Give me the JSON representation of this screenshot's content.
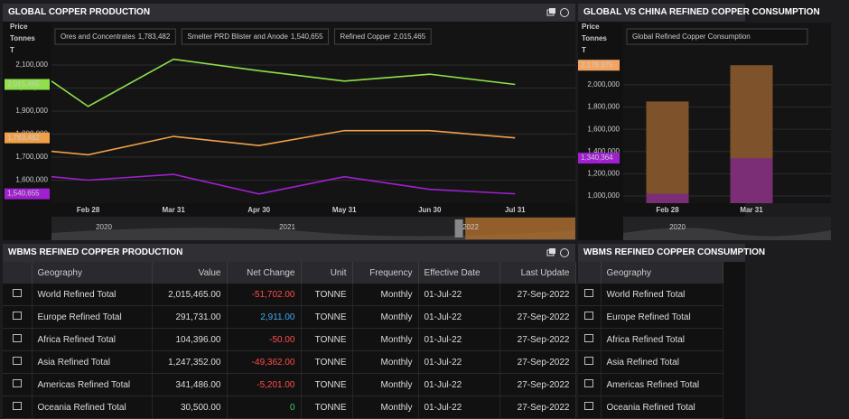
{
  "chart_data": [
    {
      "type": "line",
      "title": "GLOBAL COPPER PRODUCTION",
      "y_label": [
        "Price",
        "Tonnes",
        "T"
      ],
      "categories": [
        null,
        "Feb 28",
        "Mar 31",
        "Apr 30",
        "May 31",
        "Jun 30",
        "Jul 31"
      ],
      "series": [
        {
          "name": "Ores and Concentrates",
          "color": "#f0a04b",
          "values": [
            1725000,
            1710000,
            1790000,
            1750000,
            1815000,
            1815000,
            1783482
          ],
          "value_labels": [
            null,
            null,
            null,
            null,
            null,
            null,
            "1,783,482"
          ]
        },
        {
          "name": "Smelter PRD Blister and Anode",
          "color": "#a020d0",
          "values": [
            1615000,
            1600000,
            1625000,
            1540000,
            1615000,
            1560000,
            1540655
          ],
          "value_labels": [
            null,
            null,
            null,
            null,
            null,
            null,
            "1,540,655"
          ]
        },
        {
          "name": "Refined Copper",
          "color": "#8fe04a",
          "values": [
            2030000,
            1920000,
            2125000,
            2075000,
            2030000,
            2060000,
            2015465
          ],
          "value_labels": [
            null,
            null,
            null,
            null,
            null,
            null,
            "2,015,465"
          ]
        }
      ],
      "ylim": [
        1500000,
        2284000
      ],
      "yticks": [
        {
          "value": 1600000,
          "label": "1,600,000"
        },
        {
          "value": 1700000,
          "label": "1,700,000"
        },
        {
          "value": 1800000,
          "label": "1,800,000"
        },
        {
          "value": 1900000,
          "label": "1,900,000"
        },
        {
          "value": 2000000,
          "label": "2,000,000"
        },
        {
          "value": 2100000,
          "label": "2,100,000"
        }
      ],
      "grid": true,
      "navigator": [
        "2020",
        "2021",
        "2022"
      ]
    },
    {
      "type": "bar",
      "title": "GLOBAL VS CHINA REFINED COPPER CONSUMPTION",
      "y_label": [
        "Price",
        "Tonnes",
        "T"
      ],
      "categories": [
        "Feb 28",
        "Mar 31"
      ],
      "series": [
        {
          "name": "Global Refined Copper Consumption",
          "color": "#8a5a2e",
          "badge_color": "#f4a460",
          "values": [
            1850000,
            2176375
          ],
          "value_labels": [
            null,
            "2,176,375"
          ]
        },
        {
          "color": "#7b2a7d",
          "badge_color": "#a020d0",
          "values": [
            1020000,
            1340364
          ],
          "value_labels": [
            null,
            "1,340,364"
          ]
        }
      ],
      "ylim": [
        935000,
        2560000
      ],
      "yticks": [
        {
          "value": 1000000,
          "label": "1,000,000"
        },
        {
          "value": 1200000,
          "label": "1,200,000"
        },
        {
          "value": 1400000,
          "label": "1,400,000"
        },
        {
          "value": 1600000,
          "label": "1,600,000"
        },
        {
          "value": 1800000,
          "label": "1,800,000"
        },
        {
          "value": 2000000,
          "label": "2,000,000"
        }
      ],
      "grid": true,
      "navigator": [
        "2020"
      ]
    }
  ],
  "tables": [
    {
      "title": "WBMS REFINED COPPER PRODUCTION",
      "columns": [
        "Geography",
        "Value",
        "Net Change",
        "Unit",
        "Frequency",
        "Effective Date",
        "Last Update"
      ],
      "rows": [
        [
          "World Refined Total",
          "2,015,465.00",
          "-51,702.00",
          "TONNE",
          "Monthly",
          "01-Jul-22",
          "27-Sep-2022"
        ],
        [
          "Europe Refined Total",
          "291,731.00",
          "2,911.00",
          "TONNE",
          "Monthly",
          "01-Jul-22",
          "27-Sep-2022"
        ],
        [
          "Africa Refined Total",
          "104,396.00",
          "-50.00",
          "TONNE",
          "Monthly",
          "01-Jul-22",
          "27-Sep-2022"
        ],
        [
          "Asia Refined Total",
          "1,247,352.00",
          "-49,362.00",
          "TONNE",
          "Monthly",
          "01-Jul-22",
          "27-Sep-2022"
        ],
        [
          "Americas Refined Total",
          "341,486.00",
          "-5,201.00",
          "TONNE",
          "Monthly",
          "01-Jul-22",
          "27-Sep-2022"
        ],
        [
          "Oceania Refined Total",
          "30,500.00",
          "0",
          "TONNE",
          "Monthly",
          "01-Jul-22",
          "27-Sep-2022"
        ]
      ]
    },
    {
      "title": "WBMS REFINED COPPER CONSUMPTION",
      "columns": [
        "Geography"
      ],
      "rows": [
        [
          "World Refined Total"
        ],
        [
          "Europe Refined Total"
        ],
        [
          "Africa Refined Total"
        ],
        [
          "Asia Refined Total"
        ],
        [
          "Americas Refined Total"
        ],
        [
          "Oceania Refined Total"
        ]
      ]
    }
  ]
}
